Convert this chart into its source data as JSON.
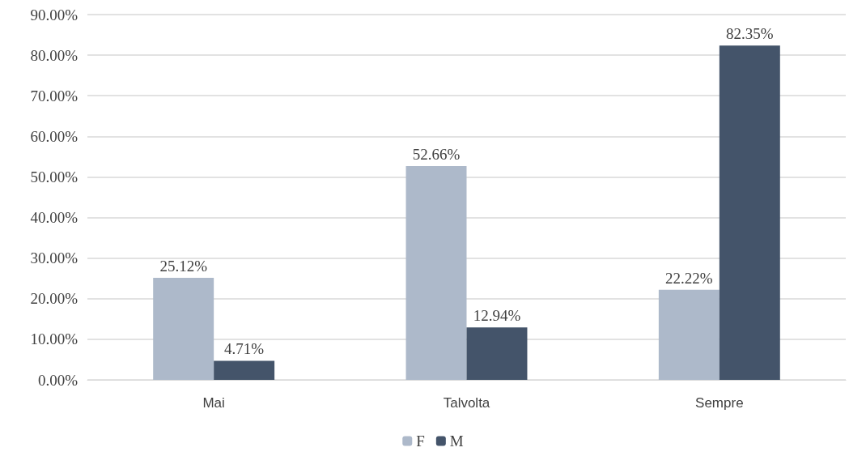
{
  "chart_data": {
    "type": "bar",
    "categories": [
      "Mai",
      "Talvolta",
      "Sempre"
    ],
    "series": [
      {
        "name": "F",
        "color": "#adb9ca",
        "values": [
          25.12,
          52.66,
          22.22
        ],
        "value_labels": [
          "25.12%",
          "52.66%",
          "22.22%"
        ]
      },
      {
        "name": "M",
        "color": "#44546a",
        "values": [
          4.71,
          12.94,
          82.35
        ],
        "value_labels": [
          "4.71%",
          "12.94%",
          "82.35%"
        ]
      }
    ],
    "ylim": [
      0,
      90
    ],
    "yticks": [
      {
        "value": 0,
        "label": "0.00%"
      },
      {
        "value": 10,
        "label": "10.00%"
      },
      {
        "value": 20,
        "label": "20.00%"
      },
      {
        "value": 30,
        "label": "30.00%"
      },
      {
        "value": 40,
        "label": "40.00%"
      },
      {
        "value": 50,
        "label": "50.00%"
      },
      {
        "value": 60,
        "label": "60.00%"
      },
      {
        "value": 70,
        "label": "70.00%"
      },
      {
        "value": 80,
        "label": "80.00%"
      },
      {
        "value": 90,
        "label": "90.00%"
      }
    ],
    "grid": "y",
    "legend": "bottom"
  }
}
